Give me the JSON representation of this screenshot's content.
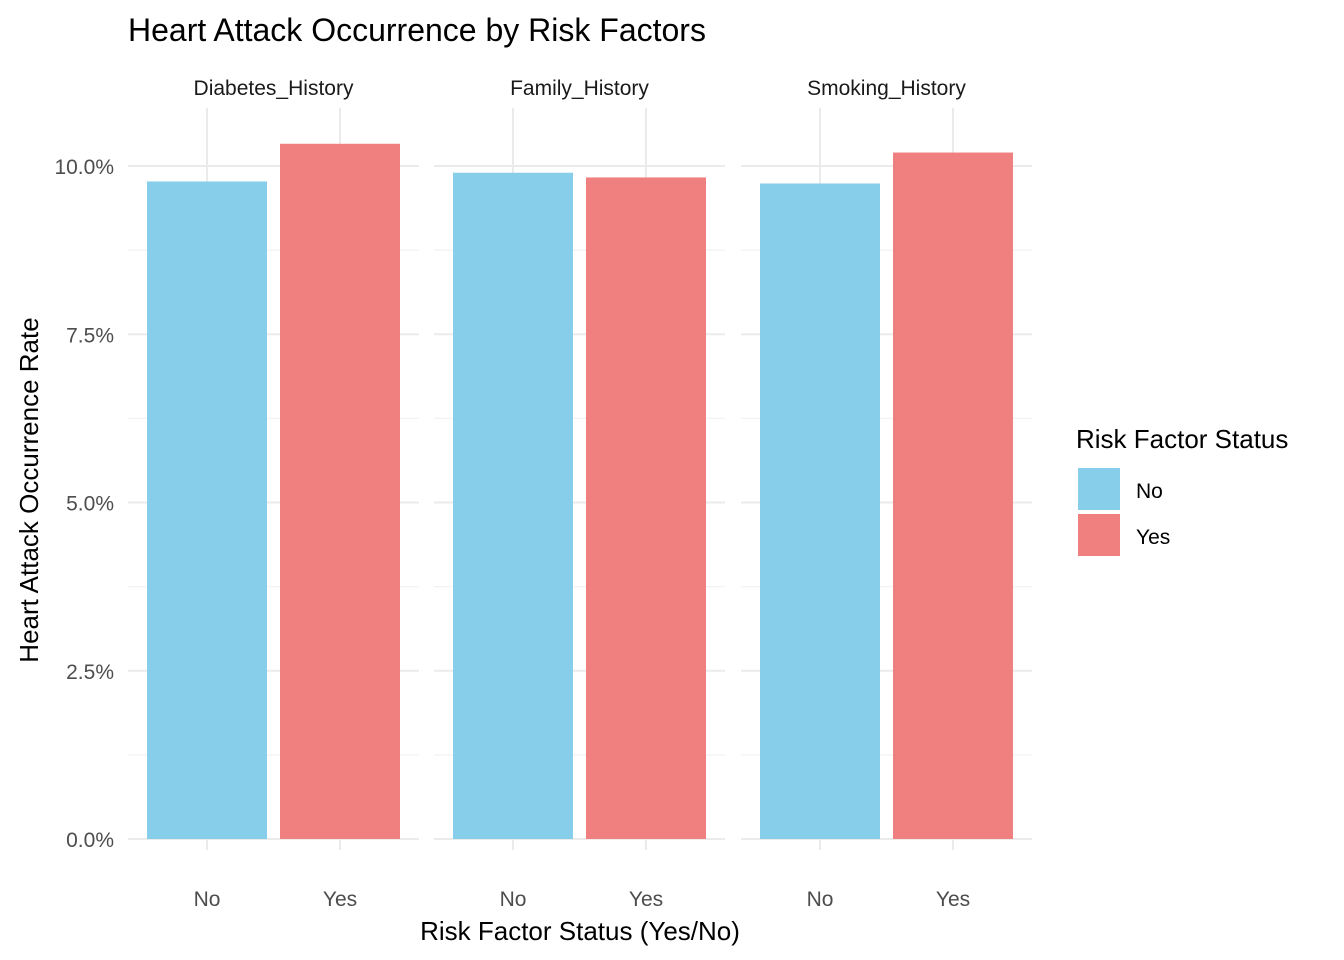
{
  "chart_data": {
    "type": "bar",
    "title": "Heart Attack Occurrence by Risk Factors",
    "xlabel": "Risk Factor Status (Yes/No)",
    "ylabel": "Heart Attack Occurrence Rate",
    "ylim": [
      0,
      0.105
    ],
    "yticks": [
      0,
      0.025,
      0.05,
      0.075,
      0.1
    ],
    "ytick_labels": [
      "0.0%",
      "2.5%",
      "5.0%",
      "7.5%",
      "10.0%"
    ],
    "categories": [
      "No",
      "Yes"
    ],
    "facets": [
      {
        "name": "Diabetes_History",
        "values": [
          0.0977,
          0.1033
        ]
      },
      {
        "name": "Family_History",
        "values": [
          0.099,
          0.0983
        ]
      },
      {
        "name": "Smoking_History",
        "values": [
          0.0974,
          0.102
        ]
      }
    ],
    "legend": {
      "title": "Risk Factor Status",
      "placement": "right",
      "items": [
        {
          "label": "No",
          "color": "#87CEEB"
        },
        {
          "label": "Yes",
          "color": "#F08080"
        }
      ]
    },
    "grid": true
  }
}
